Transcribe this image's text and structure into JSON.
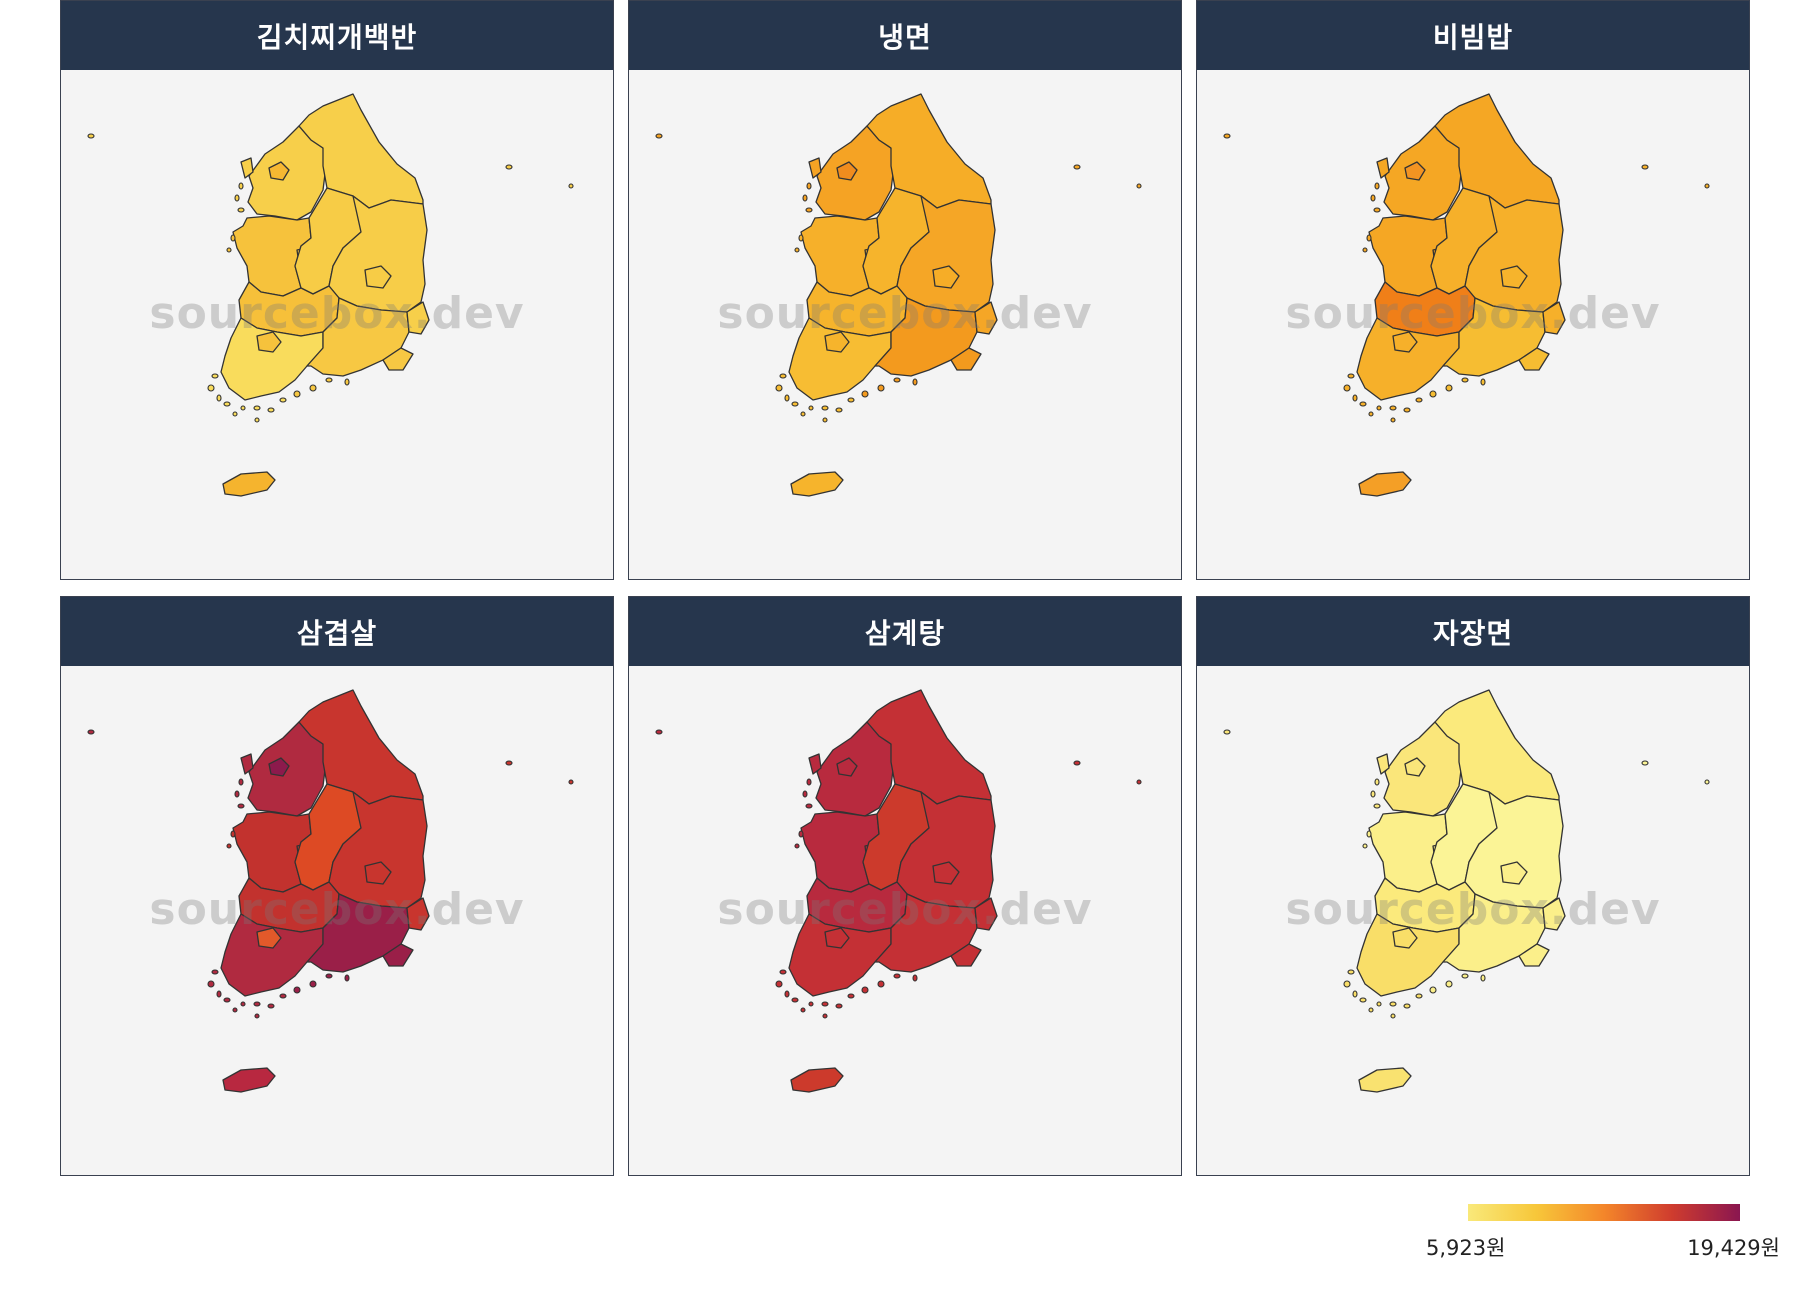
{
  "panels": [
    {
      "title": "김치찌개백반",
      "colors": {
        "gyeonggi": "#f7cf4a",
        "seoul": "#f6b832",
        "incheon": "#f7cf4a",
        "gangwon": "#f7cf4a",
        "chungbuk": "#f7cc46",
        "chungnam": "#f6c23c",
        "daejeon": "#f4a02a",
        "sejong": "#f6c23c",
        "gyeongbuk": "#f7cd48",
        "daegu": "#f7cc46",
        "jeonbuk": "#f6c03a",
        "jeonnam": "#f9dc5c",
        "gwangju": "#f6c23c",
        "gyeongnam": "#f7c843",
        "ulsan": "#f7cf4a",
        "busan": "#f7c843",
        "jeju": "#f5b42e"
      }
    },
    {
      "title": "냉면",
      "colors": {
        "gyeonggi": "#f5a324",
        "seoul": "#f08c1e",
        "incheon": "#f5a324",
        "gangwon": "#f6ad27",
        "chungbuk": "#f6b42c",
        "chungnam": "#f6b02a",
        "daejeon": "#f29a24",
        "sejong": "#f6b02a",
        "gyeongbuk": "#f5a626",
        "daegu": "#f6ad27",
        "jeonbuk": "#f6b42c",
        "jeonnam": "#f7bd33",
        "gwangju": "#f6b42c",
        "gyeongnam": "#f39a1e",
        "ulsan": "#f5a626",
        "busan": "#f39a1e",
        "jeju": "#f6b42c"
      }
    },
    {
      "title": "비빔밥",
      "colors": {
        "gyeonggi": "#f5a724",
        "seoul": "#f39422",
        "incheon": "#f5a724",
        "gangwon": "#f5a724",
        "chungbuk": "#f6b02a",
        "chungnam": "#f5a724",
        "daejeon": "#f6b42c",
        "sejong": "#f5a724",
        "gyeongbuk": "#f6b02a",
        "daegu": "#f6b42c",
        "jeonbuk": "#f07f18",
        "jeonnam": "#f6b02a",
        "gwangju": "#f6b02a",
        "gyeongnam": "#f6bd32",
        "ulsan": "#f6b02a",
        "busan": "#f6bd32",
        "jeju": "#f49f26"
      }
    },
    {
      "title": "삼겹살",
      "colors": {
        "gyeonggi": "#b02a40",
        "seoul": "#8c1a4c",
        "incheon": "#b02a40",
        "gangwon": "#c8352e",
        "chungbuk": "#dd4a24",
        "chungnam": "#c2322e",
        "daejeon": "#a02548",
        "sejong": "#c2322e",
        "gyeongbuk": "#c8352e",
        "daegu": "#c8352e",
        "jeonbuk": "#c2322e",
        "jeonnam": "#b02a40",
        "gwangju": "#e2592a",
        "gyeongnam": "#9a1f48",
        "ulsan": "#c8352e",
        "busan": "#9a1f48",
        "jeju": "#b82840"
      }
    },
    {
      "title": "삼계탕",
      "colors": {
        "gyeonggi": "#b82a3e",
        "seoul": "#b82a3e",
        "incheon": "#b82a3e",
        "gangwon": "#c43035",
        "chungbuk": "#cc3a2c",
        "chungnam": "#b82a3e",
        "daejeon": "#c43035",
        "sejong": "#b82a3e",
        "gyeongbuk": "#c43035",
        "daegu": "#c43035",
        "jeonbuk": "#b82a3e",
        "jeonnam": "#c43035",
        "gwangju": "#c43035",
        "gyeongnam": "#c43035",
        "ulsan": "#c43035",
        "busan": "#c43035",
        "jeju": "#cc3a2c"
      }
    },
    {
      "title": "자장면",
      "colors": {
        "gyeonggi": "#fae67a",
        "seoul": "#fae67a",
        "incheon": "#fae67a",
        "gangwon": "#fbea7c",
        "chungbuk": "#fbf496",
        "chungnam": "#fbef8a",
        "daejeon": "#f9de68",
        "sejong": "#fbef8a",
        "gyeongbuk": "#fbf496",
        "daegu": "#fbef8a",
        "jeonbuk": "#fbea7c",
        "jeonnam": "#f9de68",
        "gwangju": "#f9de68",
        "gyeongnam": "#fbef8a",
        "ulsan": "#fbef8a",
        "busan": "#fbef8a",
        "jeju": "#f9e270"
      }
    }
  ],
  "watermark": "sourcebox.dev",
  "legend": {
    "min_label": "5,923원",
    "max_label": "19,429원",
    "min_color": "#f9e97a",
    "max_color": "#8a1650"
  }
}
